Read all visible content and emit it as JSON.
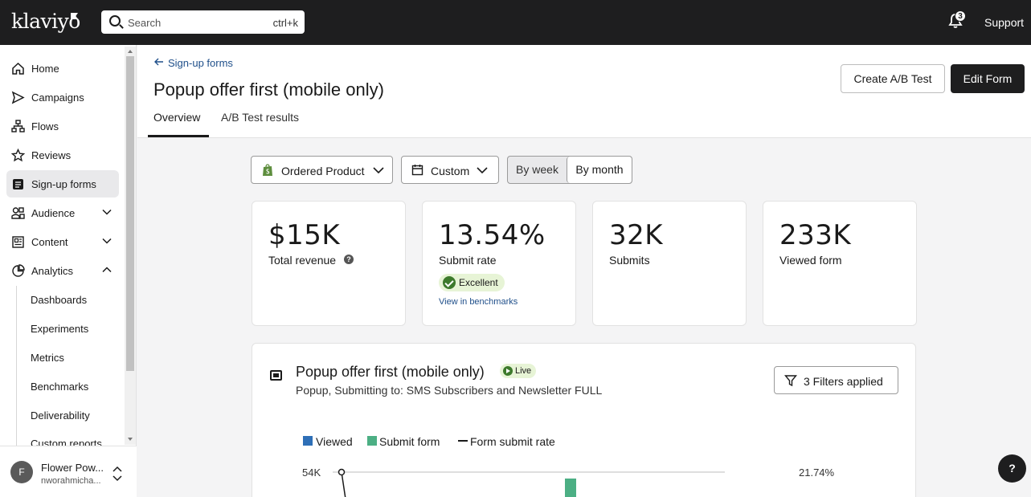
{
  "topbar": {
    "logo": "klaviyo",
    "search_placeholder": "Search",
    "search_shortcut": "ctrl+k",
    "notification_count": "3",
    "support_label": "Support"
  },
  "sidebar": {
    "items": [
      {
        "label": "Home",
        "icon": "home-icon"
      },
      {
        "label": "Campaigns",
        "icon": "send-icon"
      },
      {
        "label": "Flows",
        "icon": "flows-icon"
      },
      {
        "label": "Reviews",
        "icon": "star-icon"
      },
      {
        "label": "Sign-up forms",
        "icon": "form-icon",
        "active": true
      },
      {
        "label": "Audience",
        "icon": "audience-icon",
        "chevron": "down"
      },
      {
        "label": "Content",
        "icon": "content-icon",
        "chevron": "down"
      },
      {
        "label": "Analytics",
        "icon": "analytics-icon",
        "chevron": "up"
      }
    ],
    "analytics_sub": [
      "Dashboards",
      "Experiments",
      "Metrics",
      "Benchmarks",
      "Deliverability",
      "Custom reports"
    ],
    "account": {
      "initial": "F",
      "name": "Flower Pow...",
      "email": "nworahmicha..."
    }
  },
  "header": {
    "back_label": "Sign-up forms",
    "title": "Popup offer first (mobile only)",
    "tabs": [
      "Overview",
      "A/B Test results"
    ],
    "create_ab_label": "Create A/B Test",
    "edit_form_label": "Edit Form"
  },
  "filters": {
    "metric": "Ordered Product",
    "range": "Custom",
    "by_week": "By week",
    "by_month": "By month"
  },
  "stats": [
    {
      "value": "$15K",
      "label": "Total revenue"
    },
    {
      "value": "13.54%",
      "label": "Submit rate",
      "badge": "Excellent",
      "link": "View in benchmarks"
    },
    {
      "value": "32K",
      "label": "Submits"
    },
    {
      "value": "233K",
      "label": "Viewed form"
    }
  ],
  "form_detail": {
    "title": "Popup offer first (mobile only)",
    "status": "Live",
    "subtitle": "Popup, Submitting to: SMS Subscribers and Newsletter FULL",
    "filters_label": "3 Filters applied"
  },
  "chart_data": {
    "type": "bar",
    "legend": [
      "Viewed",
      "Submit form",
      "Form submit rate"
    ],
    "colors": {
      "viewed": "#2e6fb7",
      "submit": "#4caf84",
      "rate": "#1a1a1a"
    },
    "y_left_ticks": [
      "54K"
    ],
    "y_right_ticks": [
      "21.74%"
    ]
  },
  "help_label": "?"
}
